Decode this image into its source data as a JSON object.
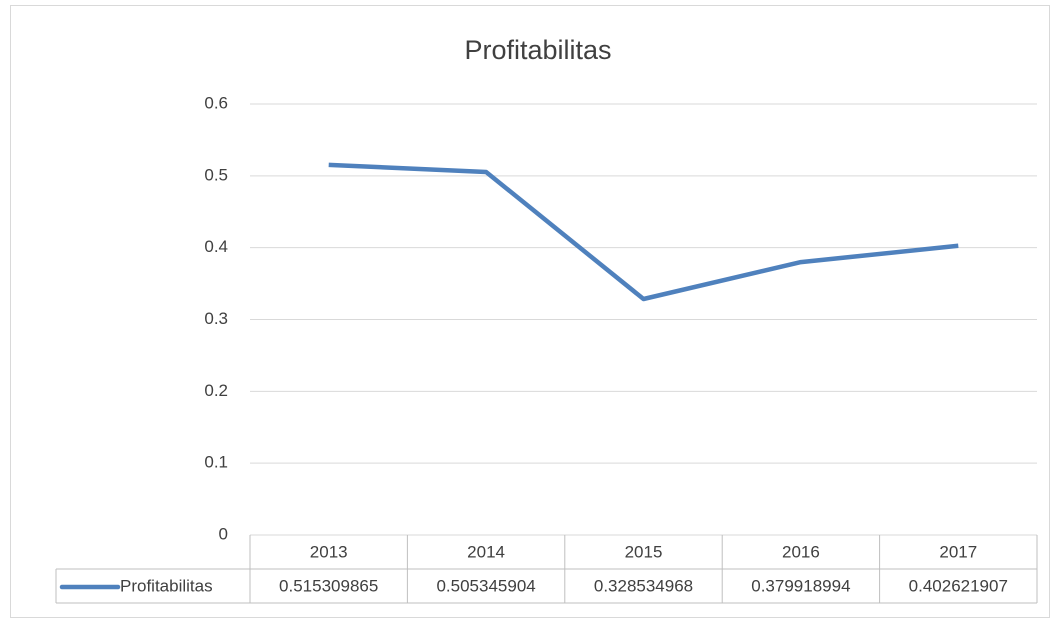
{
  "chart_data": {
    "type": "line",
    "title": "Profitabilitas",
    "categories": [
      "2013",
      "2014",
      "2015",
      "2016",
      "2017"
    ],
    "series": [
      {
        "name": "Profitabilitas",
        "color": "#4f81bd",
        "values": [
          0.515309865,
          0.505345904,
          0.328534968,
          0.379918994,
          0.402621907
        ]
      }
    ],
    "ylim": [
      0,
      0.6
    ],
    "yticks": [
      0,
      0.1,
      0.2,
      0.3,
      0.4,
      0.5,
      0.6
    ],
    "grid": true,
    "data_table": true
  }
}
